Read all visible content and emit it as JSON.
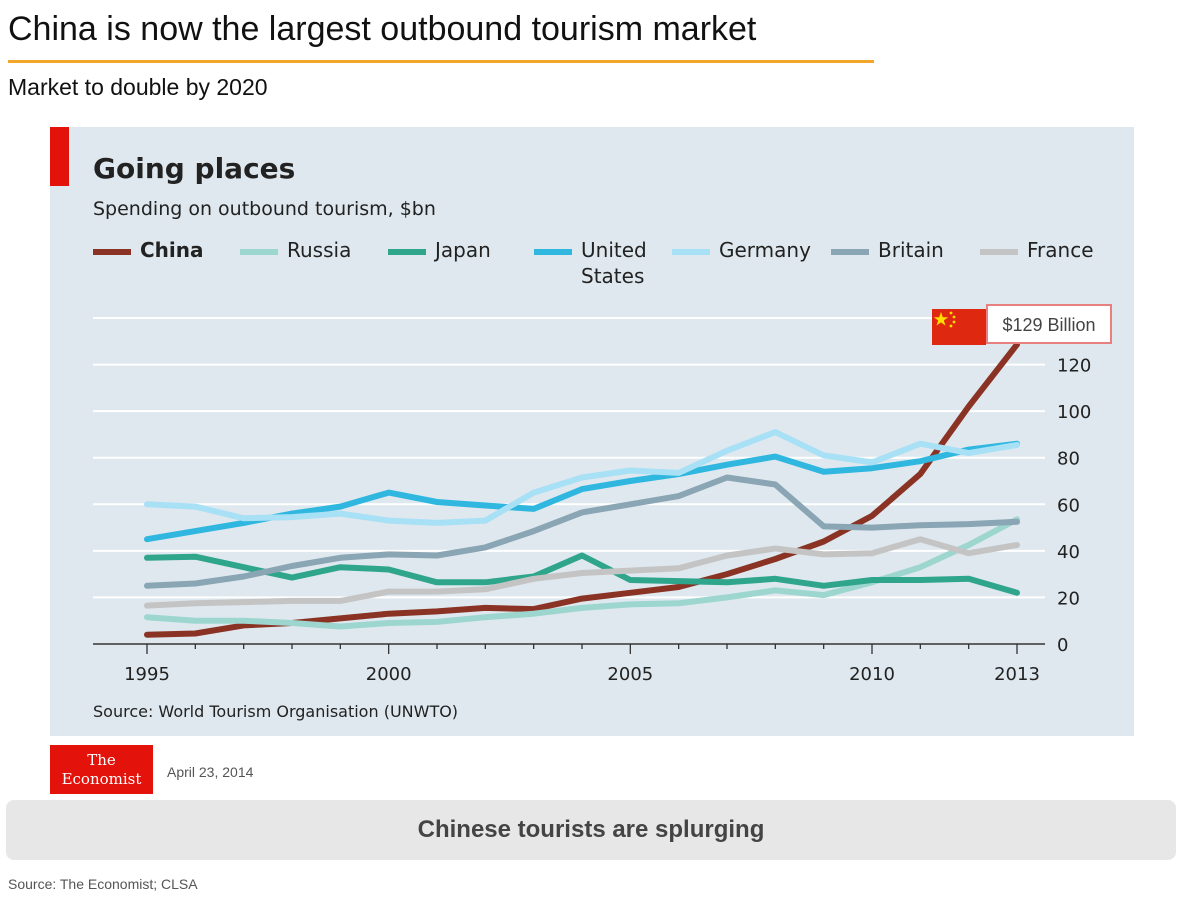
{
  "slide": {
    "title": "China is now the largest outbound tourism market",
    "subtitle": "Market to double by 2020",
    "banner": "Chinese tourists are splurging",
    "source": "Source: The Economist; CLSA"
  },
  "publication": {
    "logo_line1": "The",
    "logo_line2": "Economist",
    "date": "April 23, 2014"
  },
  "callout": {
    "text": "$129 Billion"
  },
  "colors": {
    "accent_rule": "#f2a72b",
    "economist_red": "#e3120b",
    "panel_bg": "#dfe8ee",
    "china_flag": "#de2910"
  },
  "chart_data": {
    "type": "line",
    "title": "Going places",
    "subtitle": "Spending on outbound tourism, $bn",
    "source": "Source: World Tourism Organisation (UNWTO)",
    "x": [
      1995,
      1996,
      1997,
      1998,
      1999,
      2000,
      2001,
      2002,
      2003,
      2004,
      2005,
      2006,
      2007,
      2008,
      2009,
      2010,
      2011,
      2012,
      2013
    ],
    "xticks": [
      1995,
      2000,
      2005,
      2010,
      2013
    ],
    "xlim": [
      1995,
      2013
    ],
    "yticks": [
      0,
      20,
      40,
      60,
      80,
      100,
      120
    ],
    "ylim": [
      0,
      140
    ],
    "grid": true,
    "legend_position": "top",
    "series": [
      {
        "name": "China",
        "color": "#8a3324",
        "bold": true,
        "values": [
          4,
          4.5,
          8,
          9,
          11,
          13,
          14,
          15.5,
          15,
          19.5,
          22,
          24.5,
          30,
          36.5,
          44,
          55,
          73,
          102,
          128.6
        ]
      },
      {
        "name": "Russia",
        "color": "#9dd6cf",
        "values": [
          11.5,
          10,
          10,
          9,
          7.5,
          9,
          9.5,
          11.5,
          13,
          15.5,
          17,
          17.5,
          20,
          23,
          21,
          26.5,
          33,
          42.5,
          53.5
        ]
      },
      {
        "name": "Japan",
        "color": "#2fa58c",
        "values": [
          37,
          37.5,
          33,
          28.5,
          33,
          32,
          26.5,
          26.5,
          29,
          38,
          27.5,
          27,
          26.5,
          28,
          25,
          27.5,
          27.5,
          28,
          22
        ]
      },
      {
        "name": "United\nStates",
        "color": "#2fb7e0",
        "values": [
          45,
          48.5,
          52,
          56,
          59,
          65,
          61,
          59.5,
          58,
          66.5,
          70,
          73,
          77,
          80.5,
          74,
          75.5,
          78.5,
          83.5,
          86
        ]
      },
      {
        "name": "Germany",
        "color": "#a8e0f5",
        "values": [
          60,
          59,
          54,
          54.5,
          56,
          53,
          52,
          53,
          65,
          71.5,
          74.5,
          73.5,
          83,
          91,
          81,
          78,
          86,
          82,
          85.5
        ]
      },
      {
        "name": "Britain",
        "color": "#8aa5b4",
        "values": [
          25,
          26,
          29,
          33.5,
          37,
          38.5,
          38,
          41.5,
          48.5,
          56.5,
          60,
          63.5,
          71.5,
          68.5,
          50.5,
          50,
          51,
          51.5,
          52.5
        ]
      },
      {
        "name": "France",
        "color": "#c4c4c4",
        "values": [
          16.5,
          17.5,
          18,
          18.5,
          18.5,
          22.5,
          22.5,
          23.5,
          28,
          30.5,
          31.5,
          32.5,
          38,
          41,
          38.5,
          39,
          45,
          39,
          42.5
        ]
      }
    ]
  }
}
